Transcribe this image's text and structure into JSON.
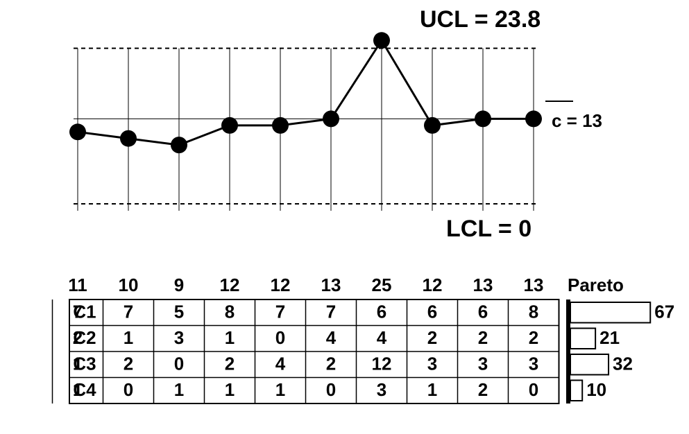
{
  "chart_data": {
    "type": "line",
    "values": [
      11,
      10,
      9,
      12,
      12,
      13,
      25,
      12,
      13,
      13
    ],
    "color": "#000000",
    "ucl": 23.8,
    "center": 13,
    "lcl": 0,
    "ucl_label": "UCL = 23.8",
    "center_label": "c = 13",
    "lcl_label": "LCL = 0",
    "ylim": [
      0,
      28
    ]
  },
  "table": {
    "pareto_title": "Pareto",
    "rows": [
      {
        "label": "C1",
        "values": [
          7,
          7,
          5,
          8,
          7,
          7,
          6,
          6,
          6,
          8
        ],
        "total": 67
      },
      {
        "label": "C2",
        "values": [
          2,
          1,
          3,
          1,
          0,
          4,
          4,
          2,
          2,
          2
        ],
        "total": 21
      },
      {
        "label": "C3",
        "values": [
          1,
          2,
          0,
          2,
          4,
          2,
          12,
          3,
          3,
          3
        ],
        "total": 32
      },
      {
        "label": "C4",
        "values": [
          1,
          0,
          1,
          1,
          1,
          0,
          3,
          1,
          2,
          0
        ],
        "total": 10
      }
    ]
  }
}
